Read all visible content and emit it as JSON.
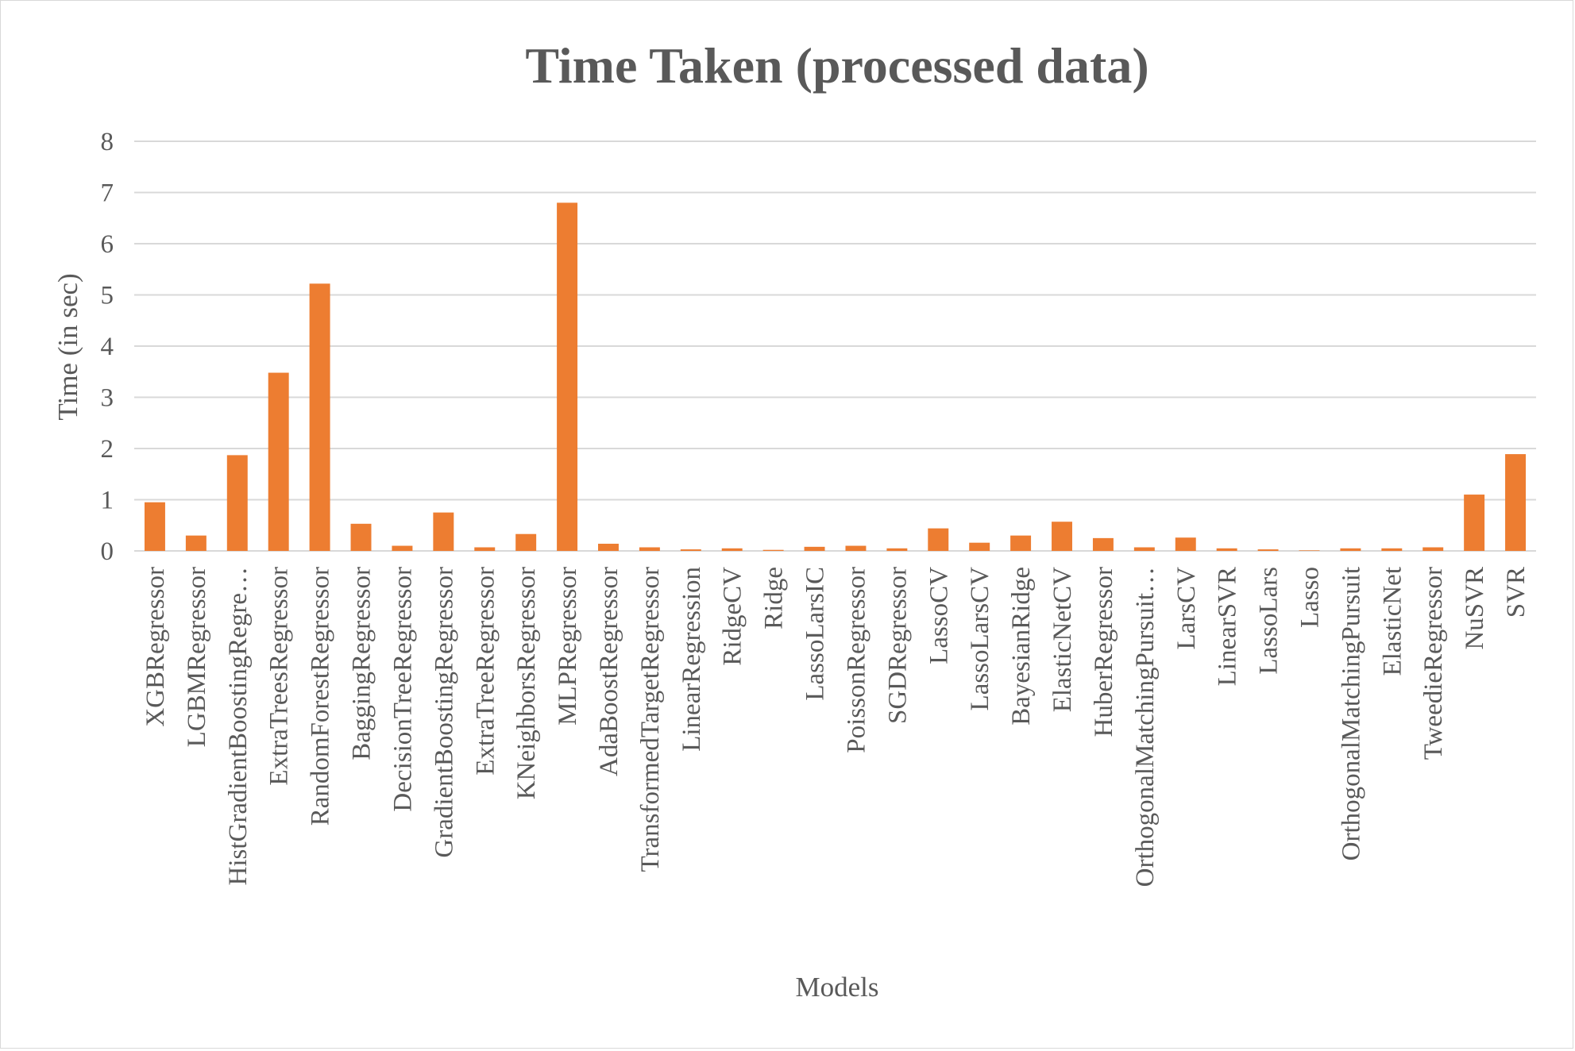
{
  "chart_data": {
    "type": "bar",
    "title": "Time Taken (processed data)",
    "xlabel": "Models",
    "ylabel": "Time (in sec)",
    "ylim": [
      0,
      8
    ],
    "yticks": [
      "0",
      "1",
      "2",
      "3",
      "4",
      "5",
      "6",
      "7",
      "8"
    ],
    "grid": true,
    "legend": "none",
    "bar_color": "#ED7D31",
    "categories": [
      "XGBRegressor",
      "LGBMRegressor",
      "HistGradientBoostingRegre…",
      "ExtraTreesRegressor",
      "RandomForestRegressor",
      "BaggingRegressor",
      "DecisionTreeRegressor",
      "GradientBoostingRegressor",
      "ExtraTreeRegressor",
      "KNeighborsRegressor",
      "MLPRegressor",
      "AdaBoostRegressor",
      "TransformedTargetRegressor",
      "LinearRegression",
      "RidgeCV",
      "Ridge",
      "LassoLarsIC",
      "PoissonRegressor",
      "SGDRegressor",
      "LassoCV",
      "LassoLarsCV",
      "BayesianRidge",
      "ElasticNetCV",
      "HuberRegressor",
      "OrthogonalMatchingPursuit…",
      "LarsCV",
      "LinearSVR",
      "LassoLars",
      "Lasso",
      "OrthogonalMatchingPursuit",
      "ElasticNet",
      "TweedieRegressor",
      "NuSVR",
      "SVR"
    ],
    "values": [
      0.95,
      0.3,
      1.87,
      3.48,
      5.22,
      0.53,
      0.1,
      0.75,
      0.07,
      0.33,
      6.8,
      0.14,
      0.07,
      0.03,
      0.05,
      0.02,
      0.08,
      0.1,
      0.05,
      0.44,
      0.16,
      0.3,
      0.57,
      0.25,
      0.07,
      0.26,
      0.05,
      0.03,
      0.01,
      0.05,
      0.05,
      0.07,
      1.1,
      1.89
    ]
  }
}
